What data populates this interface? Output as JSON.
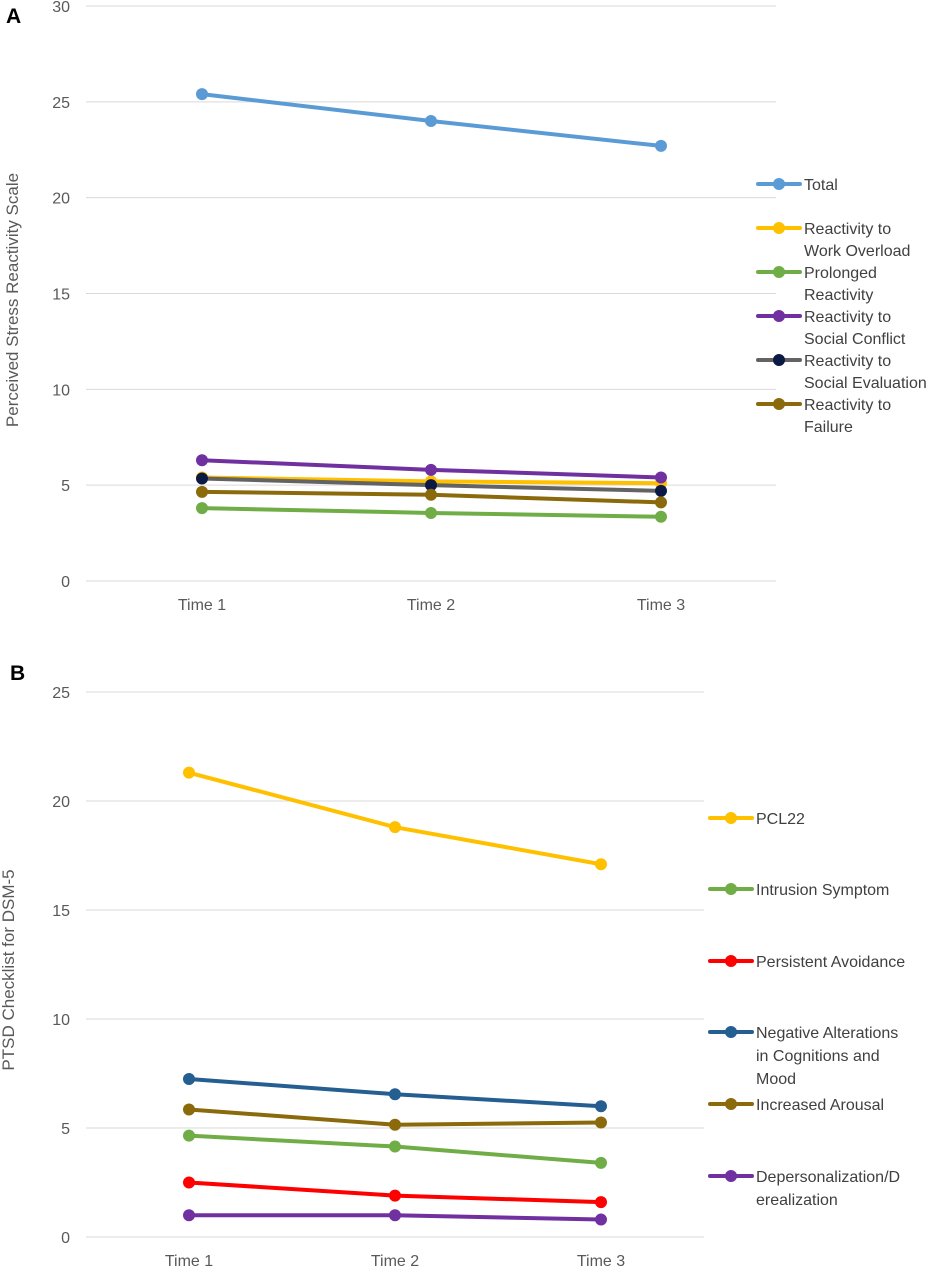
{
  "chart_data": [
    {
      "panel": "A",
      "type": "line",
      "ylabel": "Perceived Stress Reactivity Scale",
      "xlabel": "",
      "ylim": [
        0,
        30
      ],
      "yticks": [
        "0",
        "5",
        "10",
        "15",
        "20",
        "25",
        "30"
      ],
      "categories": [
        "Time 1",
        "Time 2",
        "Time 3"
      ],
      "grid": true,
      "legend": "right",
      "series": [
        {
          "name": "Total",
          "label_lines": [
            "Total"
          ],
          "color": "#5B9BD5",
          "values": [
            25.4,
            24.0,
            22.7
          ]
        },
        {
          "name": "Reactivity to Work Overload",
          "label_lines": [
            "Reactivity to",
            "Work Overload"
          ],
          "color": "#FFC000",
          "values": [
            5.4,
            5.2,
            5.1
          ]
        },
        {
          "name": "Prolonged Reactivity",
          "label_lines": [
            "Prolonged",
            "Reactivity"
          ],
          "color": "#70AD47",
          "values": [
            3.8,
            3.55,
            3.35
          ]
        },
        {
          "name": "Reactivity to Social Conflict",
          "label_lines": [
            "Reactivity to",
            "Social Conflict"
          ],
          "color": "#7030A0",
          "values": [
            6.3,
            5.8,
            5.4
          ]
        },
        {
          "name": "Reactivity to Social Evaluation",
          "label_lines": [
            "Reactivity to",
            "Social Evaluation"
          ],
          "color": "#636363",
          "marker": "#0B1A45",
          "values": [
            5.35,
            5.0,
            4.7
          ]
        },
        {
          "name": "Reactivity to Failure",
          "label_lines": [
            "Reactivity to",
            "Failure"
          ],
          "color": "#8B6A0B",
          "values": [
            4.65,
            4.5,
            4.1
          ]
        }
      ]
    },
    {
      "panel": "B",
      "type": "line",
      "ylabel": "PTSD Checklist for DSM-5",
      "xlabel": "",
      "ylim": [
        0,
        25
      ],
      "yticks": [
        "0",
        "5",
        "10",
        "15",
        "20",
        "25"
      ],
      "categories": [
        "Time 1",
        "Time 2",
        "Time 3"
      ],
      "grid": true,
      "legend": "right",
      "series": [
        {
          "name": "PCL22",
          "label_lines": [
            "PCL22"
          ],
          "color": "#FFC000",
          "values": [
            21.3,
            18.8,
            17.1
          ]
        },
        {
          "name": "Intrusion Symptom",
          "label_lines": [
            "Intrusion Symptom"
          ],
          "color": "#70AD47",
          "values": [
            4.65,
            4.15,
            3.4
          ]
        },
        {
          "name": "Persistent Avoidance",
          "label_lines": [
            "Persistent Avoidance"
          ],
          "color": "#FF0000",
          "values": [
            2.5,
            1.9,
            1.6
          ]
        },
        {
          "name": "Negative Alterations in Cognitions and Mood",
          "label_lines": [
            "Negative Alterations",
            "in Cognitions and",
            "Mood"
          ],
          "color": "#255E91",
          "values": [
            7.25,
            6.55,
            6.0
          ]
        },
        {
          "name": "Increased Arousal",
          "label_lines": [
            "Increased Arousal"
          ],
          "color": "#8B6A0B",
          "values": [
            5.85,
            5.15,
            5.25
          ]
        },
        {
          "name": "Depersonalization/Derealization",
          "label_lines": [
            "Depersonalization/D",
            "erealization"
          ],
          "color": "#7030A0",
          "values": [
            1.0,
            1.0,
            0.8
          ]
        }
      ]
    }
  ]
}
